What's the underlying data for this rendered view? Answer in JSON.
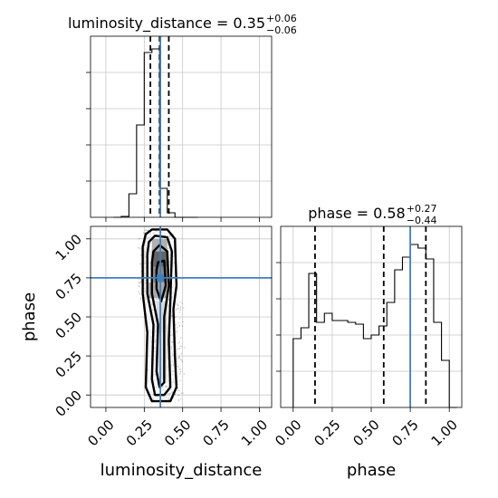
{
  "chart_data": {
    "type": "corner",
    "panels": [
      {
        "id": "luminosity_distance-hist",
        "type": "histogram-step",
        "title_param": "luminosity_distance",
        "title_value": "0.35",
        "title_plus": "+0.06",
        "title_minus": "−0.06",
        "xlim": [
          -0.1,
          1.08
        ],
        "ylim": [
          0,
          1.0
        ],
        "x_ticks": [
          0.0,
          0.25,
          0.5,
          0.75,
          1.0
        ],
        "y_ticks": [
          0.2,
          0.4,
          0.6,
          0.8
        ],
        "bin_edges": [
          0.05,
          0.1,
          0.15,
          0.2,
          0.25,
          0.3,
          0.35,
          0.4,
          0.45,
          0.5,
          0.55,
          0.6
        ],
        "counts": [
          0.0,
          0.005,
          0.13,
          0.51,
          0.91,
          0.93,
          0.16,
          0.025,
          0.0,
          0.0,
          0.0
        ],
        "quantiles": [
          0.29,
          0.35,
          0.41
        ],
        "truth": 0.355,
        "grid": true
      },
      {
        "id": "phase-hist",
        "type": "histogram-step",
        "title_param": "phase",
        "title_value": "0.58",
        "title_plus": "+0.27",
        "title_minus": "−0.44",
        "xlim": [
          -0.08,
          1.08
        ],
        "ylim": [
          0,
          1.0
        ],
        "x_ticks": [
          0.0,
          0.25,
          0.5,
          0.75,
          1.0
        ],
        "x_tick_labels": [
          "0.00",
          "0.25",
          "0.50",
          "0.75",
          "1.00"
        ],
        "y_ticks": [
          0.2,
          0.4,
          0.6,
          0.8
        ],
        "xlabel": "phase",
        "bin_edges": [
          0.0,
          0.05,
          0.1,
          0.15,
          0.2,
          0.25,
          0.3,
          0.35,
          0.4,
          0.45,
          0.5,
          0.55,
          0.6,
          0.65,
          0.7,
          0.75,
          0.8,
          0.85,
          0.9,
          0.95,
          1.0,
          1.05
        ],
        "counts": [
          0.38,
          0.44,
          0.74,
          0.47,
          0.52,
          0.48,
          0.48,
          0.47,
          0.46,
          0.38,
          0.4,
          0.45,
          0.58,
          0.76,
          0.83,
          0.9,
          0.88,
          0.82,
          0.47,
          0.26,
          0.0
        ],
        "quantiles": [
          0.14,
          0.58,
          0.85
        ],
        "truth": 0.75,
        "grid": true
      },
      {
        "id": "2d-density",
        "type": "2d-contour-density",
        "xlim": [
          -0.1,
          1.08
        ],
        "ylim": [
          -0.08,
          1.08
        ],
        "x_ticks": [
          0.0,
          0.25,
          0.5,
          0.75,
          1.0
        ],
        "x_tick_labels": [
          "0.00",
          "0.25",
          "0.50",
          "0.75",
          "1.00"
        ],
        "y_ticks": [
          0.0,
          0.25,
          0.5,
          0.75,
          1.0
        ],
        "y_tick_labels": [
          "0.00",
          "0.25",
          "0.50",
          "0.75",
          "1.00"
        ],
        "xlabel": "luminosity_distance",
        "ylabel": "phase",
        "truth": [
          0.355,
          0.75
        ],
        "contour_levels": [
          [
            [
              0.26,
              1.03
            ],
            [
              0.3,
              1.06
            ],
            [
              0.4,
              1.06
            ],
            [
              0.45,
              1.0
            ],
            [
              0.46,
              0.7
            ],
            [
              0.44,
              0.55
            ],
            [
              0.45,
              0.25
            ],
            [
              0.46,
              0.05
            ],
            [
              0.42,
              -0.04
            ],
            [
              0.3,
              -0.04
            ],
            [
              0.26,
              0.05
            ],
            [
              0.27,
              0.4
            ],
            [
              0.24,
              0.65
            ],
            [
              0.24,
              0.95
            ]
          ],
          [
            [
              0.28,
              0.98
            ],
            [
              0.32,
              1.02
            ],
            [
              0.4,
              1.01
            ],
            [
              0.43,
              0.92
            ],
            [
              0.42,
              0.6
            ],
            [
              0.41,
              0.35
            ],
            [
              0.42,
              0.05
            ],
            [
              0.38,
              0.0
            ],
            [
              0.32,
              0.0
            ],
            [
              0.3,
              0.1
            ],
            [
              0.31,
              0.45
            ],
            [
              0.27,
              0.65
            ],
            [
              0.27,
              0.9
            ]
          ],
          [
            [
              0.31,
              0.92
            ],
            [
              0.35,
              0.96
            ],
            [
              0.4,
              0.92
            ],
            [
              0.41,
              0.7
            ],
            [
              0.38,
              0.5
            ],
            [
              0.38,
              0.3
            ],
            [
              0.38,
              0.08
            ],
            [
              0.35,
              0.05
            ],
            [
              0.33,
              0.15
            ],
            [
              0.34,
              0.45
            ],
            [
              0.3,
              0.65
            ],
            [
              0.3,
              0.85
            ]
          ],
          [
            [
              0.34,
              0.85
            ],
            [
              0.38,
              0.86
            ],
            [
              0.39,
              0.7
            ],
            [
              0.36,
              0.6
            ],
            [
              0.33,
              0.68
            ],
            [
              0.33,
              0.8
            ]
          ]
        ],
        "density_cells": [
          {
            "x": 0.3,
            "y": 0.82,
            "w": 0.1,
            "h": 0.1,
            "v": 0.9
          },
          {
            "x": 0.3,
            "y": 0.72,
            "w": 0.1,
            "h": 0.1,
            "v": 0.7
          },
          {
            "x": 0.28,
            "y": 0.62,
            "w": 0.12,
            "h": 0.1,
            "v": 0.5
          },
          {
            "x": 0.3,
            "y": 0.92,
            "w": 0.1,
            "h": 0.08,
            "v": 0.45
          },
          {
            "x": 0.33,
            "y": 0.4,
            "w": 0.07,
            "h": 0.2,
            "v": 0.2
          },
          {
            "x": 0.33,
            "y": 0.1,
            "w": 0.07,
            "h": 0.3,
            "v": 0.15
          }
        ]
      }
    ]
  }
}
